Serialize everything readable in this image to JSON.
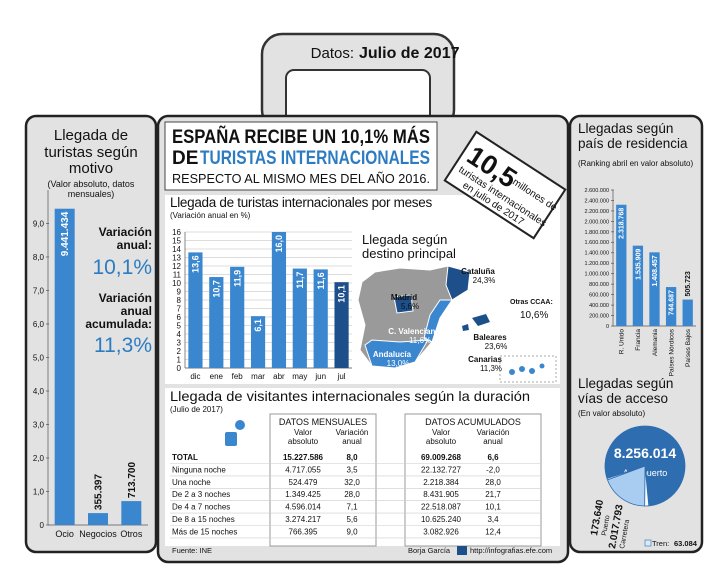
{
  "header": {
    "label": "Datos:",
    "date": "Julio de 2017"
  },
  "title": {
    "line1": "ESPAÑA RECIBE UN 10,1% MÁS",
    "line2": "DE",
    "highlight": "TURISTAS INTERNACIONALES",
    "subtitle": "RESPECTO AL MISMO MES DEL AÑO 2016."
  },
  "badge": {
    "value": "10,5",
    "lines": [
      "millones de",
      "turistas internacionales",
      "en julio de 2017"
    ]
  },
  "map": {
    "title": "Llegada según destino principal",
    "regions": [
      {
        "name": "Cataluña",
        "value": "24,3%"
      },
      {
        "name": "Madrid",
        "value": "5,6%"
      },
      {
        "name": "C. Valenciana",
        "value": "11,6%"
      },
      {
        "name": "Baleares",
        "value": "23,6%"
      },
      {
        "name": "Andalucía",
        "value": "13,0%"
      },
      {
        "name": "Canarias",
        "value": "11,3%"
      }
    ],
    "other": {
      "name": "Otras CCAA:",
      "value": "10,6%"
    }
  },
  "table": {
    "title": "Llegada de visitantes internacionales según la duración",
    "subtitle": "(Julio de 2017)",
    "groups": [
      "DATOS MENSUALES",
      "DATOS ACUMULADOS"
    ],
    "columns": [
      "Valor absoluto",
      "Variación anual",
      "Valor absoluto",
      "Variación anual"
    ],
    "rows": [
      [
        "TOTAL",
        "15.227.586",
        "8,0",
        "69.009.268",
        "6,6"
      ],
      [
        "Ninguna noche",
        "4.717.055",
        "3,5",
        "22.132.727",
        "-2,0"
      ],
      [
        "Una noche",
        "524.479",
        "32,0",
        "2.218.384",
        "28,0"
      ],
      [
        "De 2 a 3 noches",
        "1.349.425",
        "28,0",
        "8.431.905",
        "21,7"
      ],
      [
        "De 4 a 7 noches",
        "4.596.014",
        "7,1",
        "22.518.087",
        "10,1"
      ],
      [
        "De 8 a 15 noches",
        "3.274.217",
        "5,6",
        "10.625.240",
        "3,4"
      ],
      [
        "Más de 15 noches",
        "766.395",
        "9,0",
        "3.082.926",
        "12,4"
      ]
    ]
  },
  "footer": {
    "source": "Fuente: INE",
    "author": "Borja García",
    "url": "http://infografias.efe.com"
  },
  "chart_data": [
    {
      "type": "bar",
      "title": "Llegada de turistas según motivo",
      "subtitle": "(Valor absoluto, datos mensuales)",
      "categories": [
        "Ocio",
        "Negocios",
        "Otros"
      ],
      "values": [
        9.441434,
        0.355397,
        0.7137
      ],
      "value_labels": [
        "9.441.434",
        "355.397",
        "713.700"
      ],
      "color": "#3b87cf",
      "ylim": [
        0,
        10
      ],
      "yticks": [
        0,
        {
          "value": 1,
          "label": "1,0"
        },
        {
          "value": 2,
          "label": "2,0"
        },
        {
          "value": 3,
          "label": "3,0"
        },
        {
          "value": 4,
          "label": "4,0"
        },
        {
          "value": 5,
          "label": "5,0"
        },
        {
          "value": 6,
          "label": "6,0"
        },
        {
          "value": 7,
          "label": "7,0"
        },
        {
          "value": 8,
          "label": "8,0"
        },
        {
          "value": 9,
          "label": "9,0"
        }
      ],
      "grid": false,
      "annotations": [
        {
          "label": "Variación anual:",
          "value": "10,1%"
        },
        {
          "label": "Variación anual acumulada:",
          "value": "11,3%"
        }
      ]
    },
    {
      "type": "bar",
      "title": "Llegada de turistas internacionales por meses",
      "subtitle": "(Variación anual en %)",
      "categories": [
        "dic",
        "ene",
        "feb",
        "mar",
        "abr",
        "may",
        "jun",
        "jul"
      ],
      "values": [
        13.6,
        10.7,
        11.9,
        6.1,
        16.0,
        11.7,
        11.6,
        10.1
      ],
      "value_labels": [
        "13,6",
        "10,7",
        "11,9",
        "6,1",
        "16,0",
        "11,7",
        "11,6",
        "10,1"
      ],
      "colors": [
        "#3b87cf",
        "#3b87cf",
        "#3b87cf",
        "#3b87cf",
        "#3b87cf",
        "#3b87cf",
        "#3b87cf",
        "#1d4f8a"
      ],
      "ylim": [
        0,
        16
      ],
      "yticks": [
        0,
        1,
        2,
        3,
        4,
        5,
        6,
        7,
        8,
        9,
        10,
        11,
        12,
        13,
        14,
        15,
        16
      ],
      "grid": true
    },
    {
      "type": "bar",
      "title": "Llegadas según país de residencia",
      "subtitle": "(Ranking abril en valor absoluto)",
      "categories": [
        "R. Unido",
        "Francia",
        "Alemania",
        "Países Nórdicos",
        "Países Bajos"
      ],
      "values": [
        2318768,
        1535909,
        1408457,
        744687,
        505723
      ],
      "value_labels": [
        "2.318.768",
        "1.535.909",
        "1.408.457",
        "744.687",
        "505.723"
      ],
      "color": "#3b87cf",
      "ylim": [
        0,
        2600000
      ],
      "yticks": [
        0,
        {
          "value": 200000,
          "label": "200.000"
        },
        {
          "value": 400000,
          "label": "400.000"
        },
        {
          "value": 600000,
          "label": "600.000"
        },
        {
          "value": 800000,
          "label": "800.000"
        },
        {
          "value": 1000000,
          "label": "1.000.000"
        },
        {
          "value": 1200000,
          "label": "1.200.000"
        },
        {
          "value": 1400000,
          "label": "1.400.000"
        },
        {
          "value": 1600000,
          "label": "1.600.000"
        },
        {
          "value": 1800000,
          "label": "1.800.000"
        },
        {
          "value": 2000000,
          "label": "2.000.000"
        },
        {
          "value": 2200000,
          "label": "2.200.000"
        },
        {
          "value": 2400000,
          "label": "2.400.000"
        },
        {
          "value": 2600000,
          "label": "2.600.000"
        }
      ],
      "grid": false
    },
    {
      "type": "pie",
      "title": "Llegadas según vías de acceso",
      "subtitle": "(En valor absoluto)",
      "categories": [
        "Aeropuerto",
        "Puerto",
        "Carretera",
        "Tren:"
      ],
      "values": [
        8256014,
        173640,
        2017793,
        63084
      ],
      "value_labels": [
        "8.256.014",
        "173.640",
        "2.017.793",
        "63.084"
      ],
      "colors": [
        "#2e6db0",
        "#ffffff",
        "#a9cdf0",
        "#dbeafa"
      ]
    }
  ]
}
